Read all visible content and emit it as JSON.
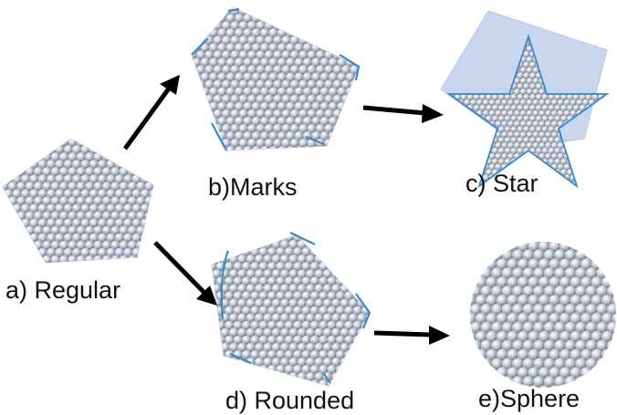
{
  "labels": {
    "a": "a) Regular",
    "b": "b)Marks",
    "c": "c) Star",
    "d": "d) Rounded",
    "e": "e)Sphere"
  },
  "colors": {
    "background": "#ffffff",
    "plate": "#c9d7ee",
    "plate_stroke": "#b4c6e4",
    "sphere_light": "#ffffff",
    "sphere_mid": "#c8ced8",
    "sphere_dark": "#5f6878",
    "facet_mark": "#3a88c9",
    "arrow": "#000000",
    "text": "#111111"
  }
}
